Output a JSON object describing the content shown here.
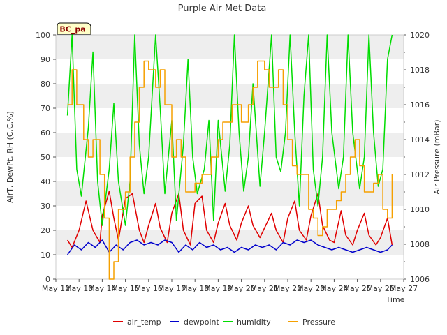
{
  "chart_data": {
    "type": "line",
    "title": "Purple Air Met Data",
    "station_label": "BC_pa",
    "xlabel": "Time",
    "ylabel_left": "AirT, DewPt, RH (C,C,%)",
    "ylabel_right": "Air Pressure (mBar)",
    "x_ticks": [
      "May 12",
      "May 13",
      "May 14",
      "May 15",
      "May 16",
      "May 17",
      "May 18",
      "May 19",
      "May 20",
      "May 21",
      "May 22",
      "May 23",
      "May 24",
      "May 25",
      "May 26",
      "May 27"
    ],
    "xlim": [
      12,
      27
    ],
    "ylim_left": [
      0,
      100
    ],
    "y_ticks_left": [
      0,
      10,
      20,
      30,
      40,
      50,
      60,
      70,
      80,
      90,
      100
    ],
    "ylim_right": [
      1006,
      1020
    ],
    "y_ticks_right": [
      1006,
      1008,
      1010,
      1012,
      1014,
      1016,
      1018,
      1020
    ],
    "legend_position": "bottom",
    "grid": "horizontal bands",
    "series": [
      {
        "name": "air_temp",
        "axis": "left",
        "color": "#e00000",
        "x": [
          12.5,
          12.7,
          13.0,
          13.3,
          13.6,
          13.9,
          14.0,
          14.3,
          14.5,
          14.7,
          15.0,
          15.3,
          15.6,
          15.8,
          16.0,
          16.3,
          16.5,
          16.8,
          17.0,
          17.3,
          17.5,
          17.8,
          18.0,
          18.3,
          18.5,
          18.8,
          19.0,
          19.3,
          19.5,
          19.8,
          20.0,
          20.3,
          20.5,
          20.8,
          21.0,
          21.3,
          21.5,
          21.8,
          22.0,
          22.3,
          22.5,
          22.8,
          23.0,
          23.3,
          23.5,
          23.8,
          24.0,
          24.3,
          24.5,
          24.8,
          25.0,
          25.3,
          25.5,
          25.8,
          26.0,
          26.3,
          26.5
        ],
        "y": [
          16,
          13,
          20,
          32,
          20,
          15,
          26,
          36,
          25,
          16,
          33,
          35,
          20,
          15,
          22,
          31,
          21,
          15,
          27,
          35,
          20,
          14,
          31,
          34,
          20,
          15,
          23,
          31,
          22,
          16,
          23,
          30,
          22,
          17,
          21,
          27,
          20,
          15,
          25,
          32,
          20,
          16,
          26,
          35,
          22,
          16,
          15,
          28,
          18,
          14,
          20,
          27,
          18,
          14,
          17,
          25,
          14
        ]
      },
      {
        "name": "dewpoint",
        "axis": "left",
        "color": "#0000cc",
        "x": [
          12.5,
          12.8,
          13.1,
          13.4,
          13.7,
          14.0,
          14.3,
          14.6,
          14.9,
          15.2,
          15.5,
          15.8,
          16.1,
          16.4,
          16.7,
          17.0,
          17.3,
          17.6,
          17.9,
          18.2,
          18.5,
          18.8,
          19.1,
          19.4,
          19.7,
          20.0,
          20.3,
          20.6,
          20.9,
          21.2,
          21.5,
          21.8,
          22.1,
          22.4,
          22.7,
          23.0,
          23.3,
          23.6,
          23.9,
          24.2,
          24.5,
          24.8,
          25.1,
          25.4,
          25.7,
          26.0,
          26.3,
          26.5
        ],
        "y": [
          10,
          14,
          12,
          15,
          13,
          16,
          11,
          14,
          12,
          15,
          16,
          14,
          15,
          14,
          16,
          15,
          11,
          14,
          12,
          15,
          13,
          14,
          12,
          13,
          11,
          13,
          12,
          14,
          13,
          14,
          12,
          15,
          14,
          16,
          15,
          16,
          14,
          13,
          12,
          13,
          12,
          11,
          12,
          13,
          12,
          11,
          12,
          14
        ]
      },
      {
        "name": "humidity",
        "axis": "left",
        "color": "#00dd00",
        "x": [
          12.5,
          12.7,
          12.9,
          13.1,
          13.4,
          13.6,
          13.8,
          14.0,
          14.3,
          14.5,
          14.7,
          15.0,
          15.2,
          15.4,
          15.6,
          15.8,
          16.0,
          16.3,
          16.5,
          16.7,
          17.0,
          17.2,
          17.5,
          17.7,
          17.9,
          18.1,
          18.4,
          18.6,
          18.8,
          19.0,
          19.3,
          19.5,
          19.7,
          19.9,
          20.1,
          20.3,
          20.5,
          20.8,
          21.0,
          21.3,
          21.5,
          21.7,
          21.9,
          22.1,
          22.3,
          22.5,
          22.7,
          22.9,
          23.1,
          23.3,
          23.5,
          23.7,
          23.9,
          24.2,
          24.4,
          24.6,
          24.8,
          25.1,
          25.3,
          25.5,
          25.7,
          25.9,
          26.1,
          26.3,
          26.5
        ],
        "y": [
          67,
          100,
          45,
          34,
          62,
          93,
          40,
          22,
          45,
          72,
          40,
          22,
          40,
          100,
          55,
          35,
          50,
          100,
          70,
          35,
          65,
          24,
          55,
          90,
          50,
          35,
          45,
          65,
          24,
          65,
          36,
          55,
          100,
          60,
          36,
          50,
          80,
          38,
          60,
          100,
          50,
          44,
          60,
          100,
          60,
          30,
          75,
          100,
          45,
          30,
          50,
          100,
          60,
          37,
          50,
          100,
          60,
          37,
          50,
          100,
          60,
          38,
          45,
          90,
          100
        ]
      },
      {
        "name": "Pressure",
        "axis": "right",
        "color": "#f5a000",
        "x": [
          12.5,
          12.7,
          12.9,
          13.2,
          13.4,
          13.6,
          13.9,
          14.1,
          14.3,
          14.5,
          14.7,
          15.0,
          15.2,
          15.4,
          15.6,
          15.8,
          16.0,
          16.3,
          16.5,
          16.7,
          17.0,
          17.2,
          17.4,
          17.6,
          17.8,
          18.0,
          18.3,
          18.5,
          18.7,
          19.0,
          19.2,
          19.4,
          19.6,
          19.8,
          20.0,
          20.3,
          20.5,
          20.7,
          21.0,
          21.2,
          21.4,
          21.6,
          21.8,
          22.0,
          22.2,
          22.4,
          22.7,
          22.9,
          23.1,
          23.3,
          23.5,
          23.7,
          23.9,
          24.1,
          24.3,
          24.5,
          24.7,
          24.9,
          25.1,
          25.3,
          25.5,
          25.7,
          25.9,
          26.1,
          26.3,
          26.5
        ],
        "y": [
          1016,
          1018,
          1016,
          1014,
          1013,
          1014,
          1012,
          1009.5,
          1006,
          1007,
          1010,
          1011,
          1013,
          1015,
          1017,
          1018.5,
          1018,
          1017,
          1018,
          1016,
          1013,
          1014,
          1013,
          1011,
          1011,
          1011.5,
          1012,
          1012,
          1013,
          1014,
          1015,
          1015,
          1016,
          1016,
          1015,
          1016,
          1017,
          1018.5,
          1018,
          1017,
          1017,
          1018,
          1016,
          1014,
          1012.5,
          1012,
          1012,
          1010,
          1009.5,
          1008.5,
          1009,
          1010,
          1010,
          1010.5,
          1011,
          1012,
          1013,
          1014,
          1012.5,
          1011,
          1011,
          1011.5,
          1012,
          1010,
          1009.5,
          1012
        ]
      }
    ]
  }
}
